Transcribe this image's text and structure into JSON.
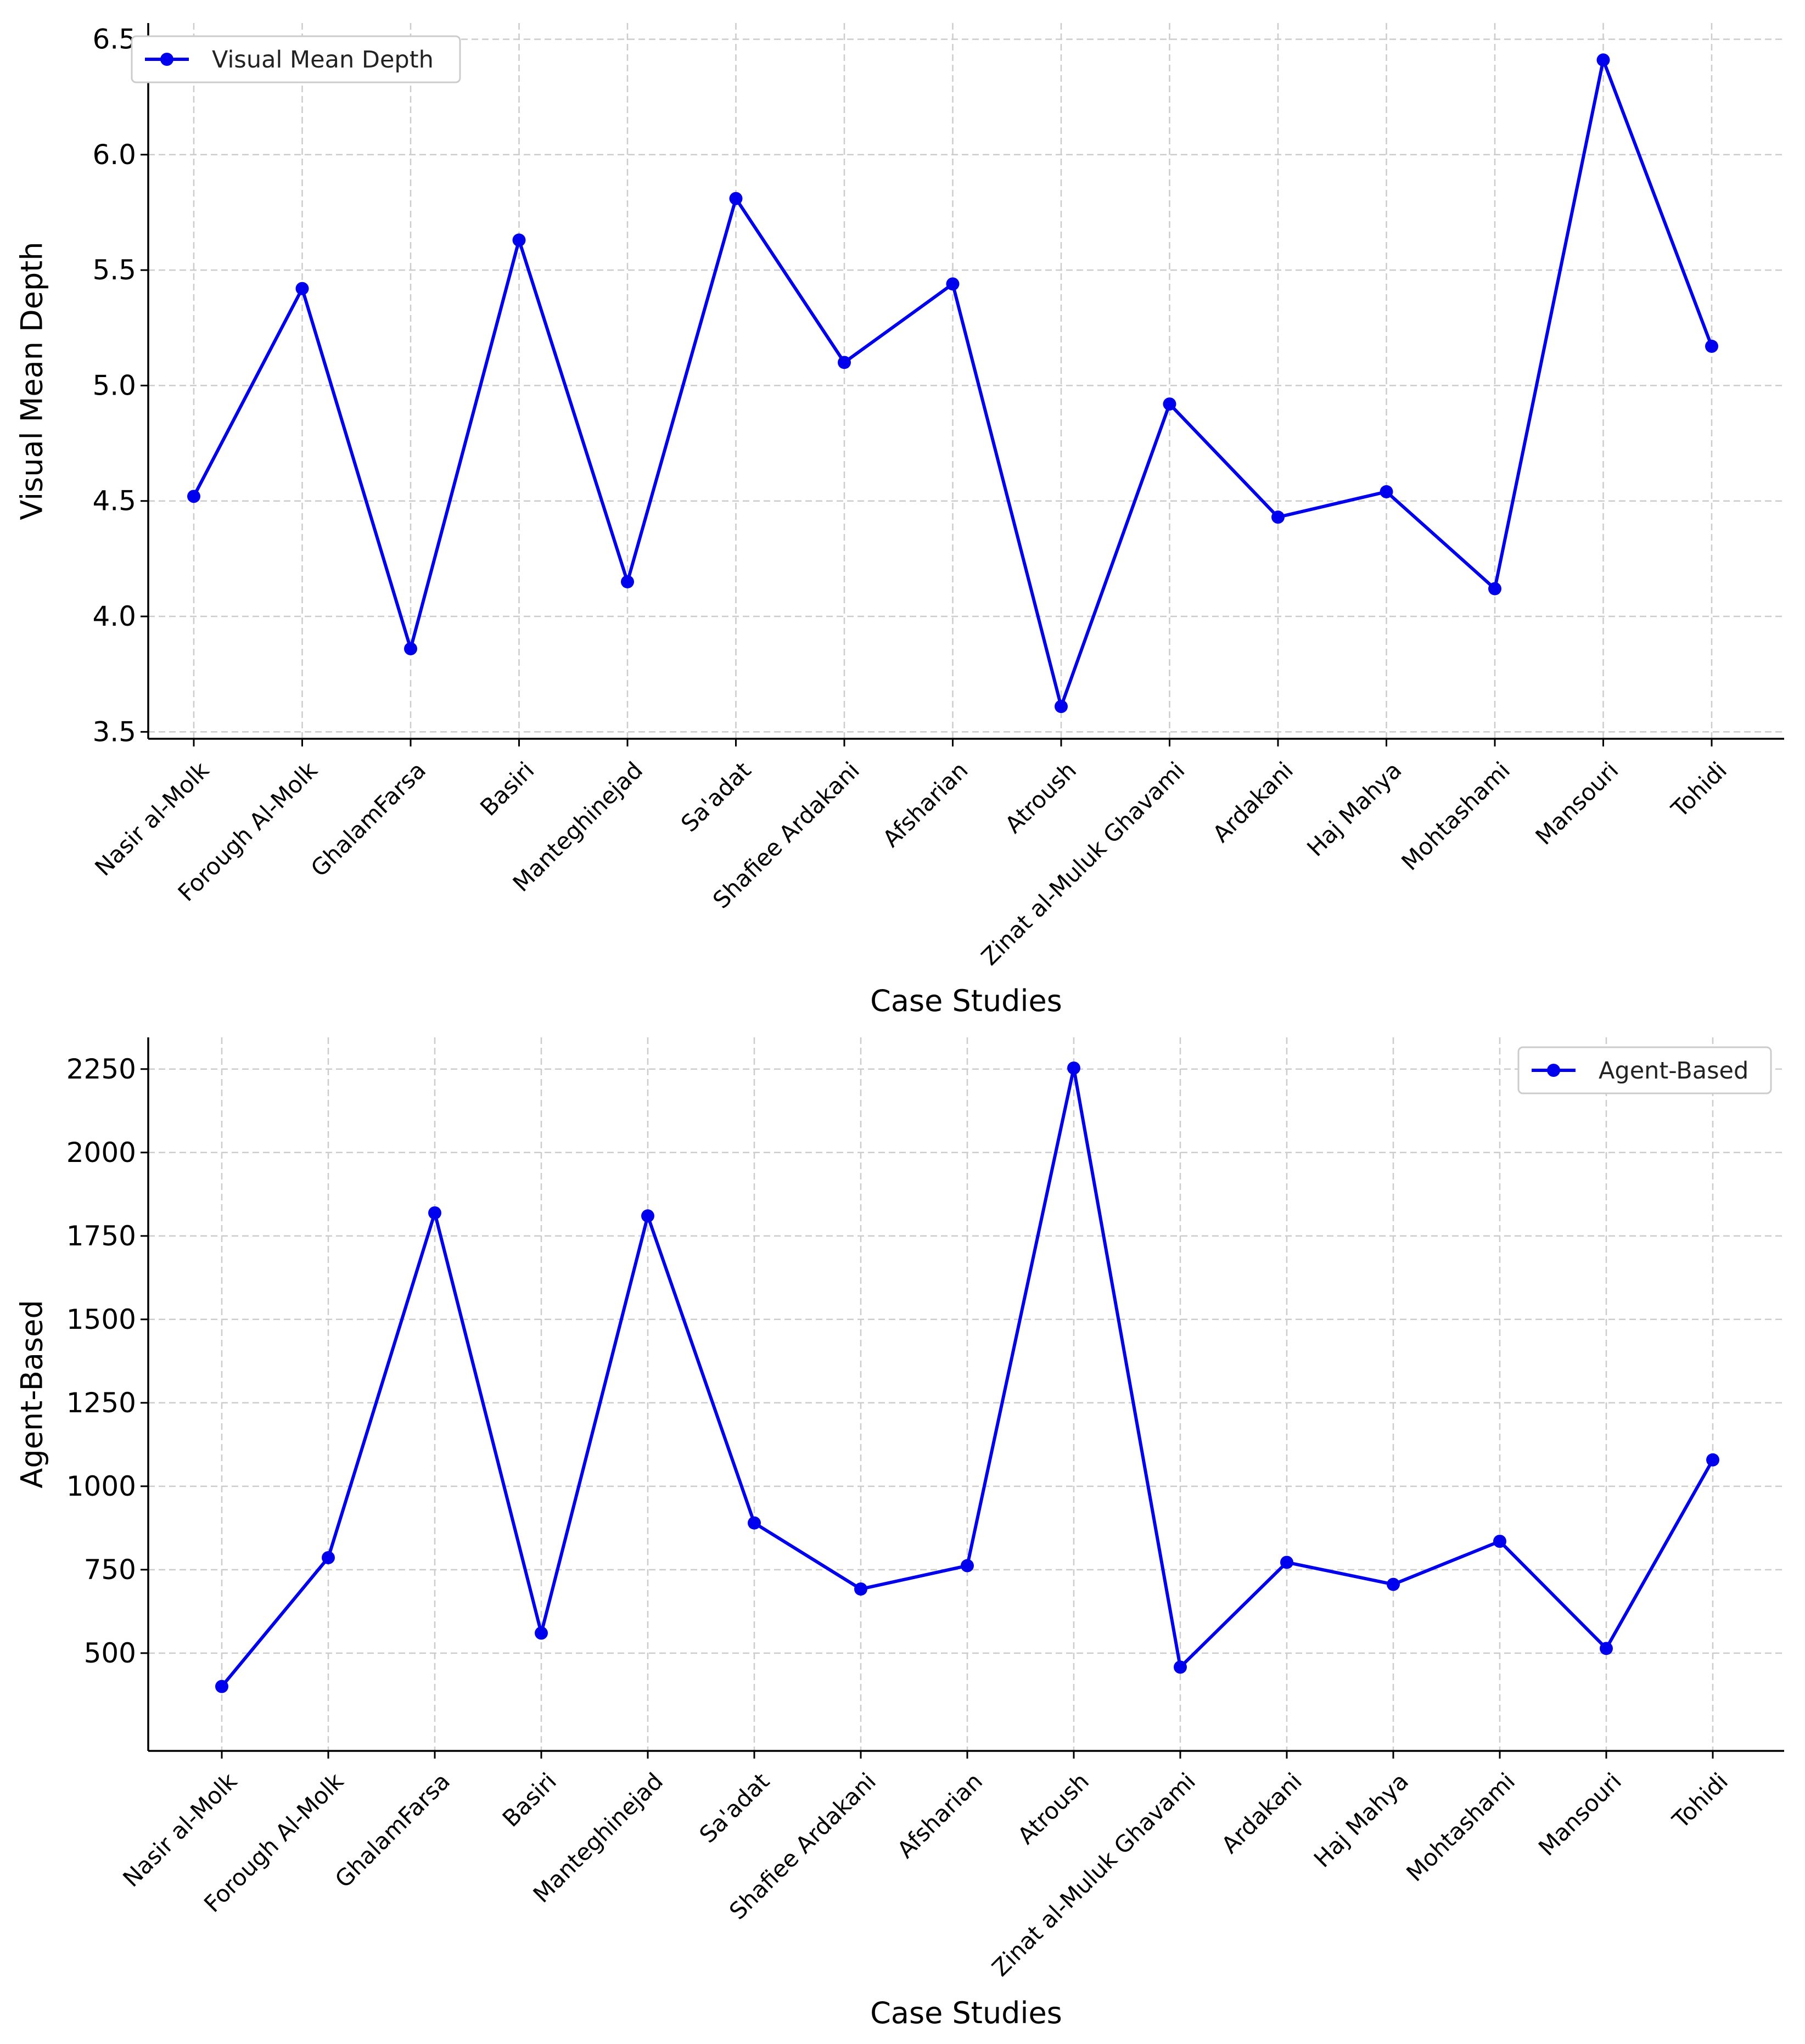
{
  "chart_data": [
    {
      "type": "line",
      "title": "",
      "xlabel": "Case Studies",
      "ylabel": "Visual Mean Depth",
      "ylim": [
        3.47,
        6.57
      ],
      "yticks": [
        3.5,
        4.0,
        4.5,
        5.0,
        5.5,
        6.0,
        6.5
      ],
      "ytick_labels": [
        "3.5",
        "4.0",
        "4.5",
        "5.0",
        "5.5",
        "6.0",
        "6.5"
      ],
      "grid": true,
      "legend_position": "top-left",
      "categories": [
        "Nasir al-Molk",
        "Forough Al-Molk",
        "GhalamFarsa",
        "Basiri",
        "Manteghinejad",
        "Sa'adat",
        "Shafiee Ardakani",
        "Afsharian",
        "Atroush",
        "Zinat al-Muluk Ghavami",
        "Ardakani",
        "Haj Mahya",
        "Mohtashami",
        "Mansouri",
        "Tohidi"
      ],
      "series": [
        {
          "name": "Visual Mean Depth",
          "color": "#0000ee",
          "marker": "circle",
          "values": [
            4.52,
            5.42,
            3.86,
            5.63,
            4.15,
            5.81,
            5.1,
            5.44,
            3.61,
            4.92,
            4.43,
            4.54,
            4.12,
            6.41,
            5.17
          ]
        }
      ]
    },
    {
      "type": "line",
      "title": "",
      "xlabel": "Case Studies",
      "ylabel": "Agent-Based",
      "ylim": [
        207,
        2345
      ],
      "yticks": [
        500,
        750,
        1000,
        1250,
        1500,
        1750,
        2000,
        2250
      ],
      "ytick_labels": [
        "500",
        "750",
        "1000",
        "1250",
        "1500",
        "1750",
        "2000",
        "2250"
      ],
      "grid": true,
      "legend_position": "top-right",
      "categories": [
        "Nasir al-Molk",
        "Forough Al-Molk",
        "GhalamFarsa",
        "Basiri",
        "Manteghinejad",
        "Sa'adat",
        "Shafiee Ardakani",
        "Afsharian",
        "Atroush",
        "Zinat al-Muluk Ghavami",
        "Ardakani",
        "Haj Mahya",
        "Mohtashami",
        "Mansouri",
        "Tohidi"
      ],
      "series": [
        {
          "name": "Agent-Based",
          "color": "#0000ee",
          "marker": "circle",
          "values": [
            400,
            786,
            1819,
            560,
            1810,
            890,
            692,
            762,
            2253,
            458,
            772,
            706,
            835,
            514,
            1079
          ]
        }
      ]
    }
  ]
}
